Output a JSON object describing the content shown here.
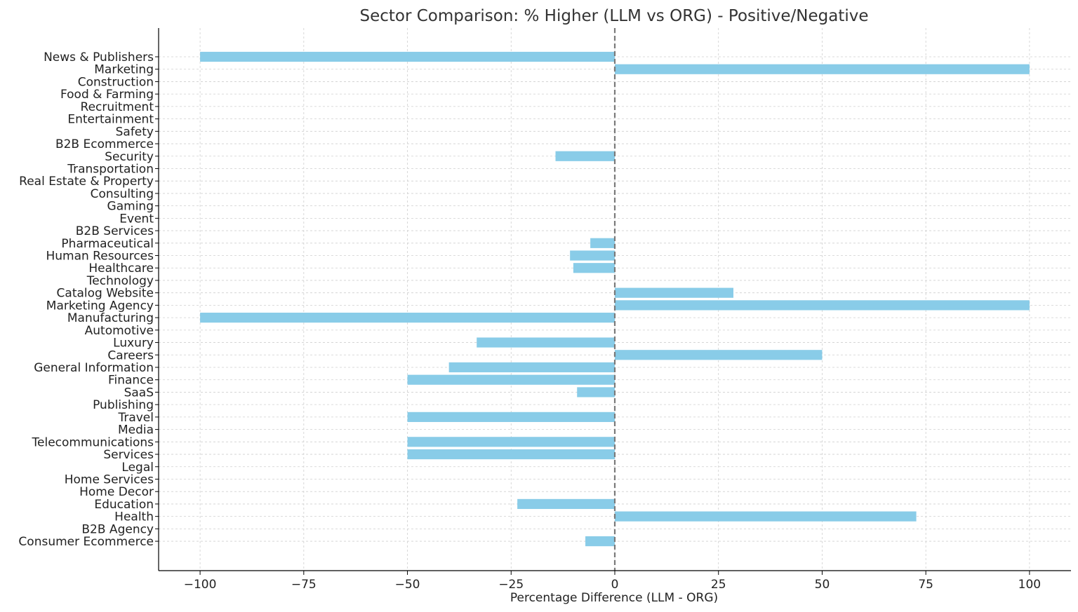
{
  "chart_data": {
    "type": "bar",
    "orientation": "horizontal",
    "title": "Sector Comparison: % Higher (LLM vs ORG) - Positive/Negative",
    "xlabel": "Percentage Difference (LLM - ORG)",
    "ylabel": "",
    "xlim": [
      -110,
      110
    ],
    "xticks": [
      -100,
      -75,
      -50,
      -25,
      0,
      25,
      50,
      75,
      100
    ],
    "xtick_labels": [
      "−100",
      "−75",
      "−50",
      "−25",
      "0",
      "25",
      "50",
      "75",
      "100"
    ],
    "grid": true,
    "bar_color": "#89cce8",
    "zero_line": {
      "value": 0,
      "style": "dashed",
      "color": "#7a7a7a"
    },
    "categories": [
      "News & Publishers",
      "Marketing",
      "Construction",
      "Food & Farming",
      "Recruitment",
      "Entertainment",
      "Safety",
      "B2B Ecommerce",
      "Security",
      "Transportation",
      "Real Estate & Property",
      "Consulting",
      "Gaming",
      "Event",
      "B2B Services",
      "Pharmaceutical",
      "Human Resources",
      "Healthcare",
      "Technology",
      "Catalog Website",
      "Marketing Agency",
      "Manufacturing",
      "Automotive",
      "Luxury",
      "Careers",
      "General Information",
      "Finance",
      "SaaS",
      "Publishing",
      "Travel",
      "Media",
      "Telecommunications",
      "Services",
      "Legal",
      "Home Services",
      "Home Decor",
      "Education",
      "Health",
      "B2B Agency",
      "Consumer Ecommerce"
    ],
    "values": [
      -100,
      100,
      0,
      0,
      0,
      0,
      0,
      0,
      -14.3,
      0,
      0,
      0,
      0,
      0,
      0,
      -5.9,
      -10.8,
      -10,
      0,
      28.6,
      100,
      -100,
      0,
      -33.3,
      50,
      -40,
      -50,
      -9.1,
      0,
      -50,
      0,
      -50,
      -50,
      0,
      0,
      0,
      -23.5,
      72.7,
      0,
      -7.1
    ]
  }
}
